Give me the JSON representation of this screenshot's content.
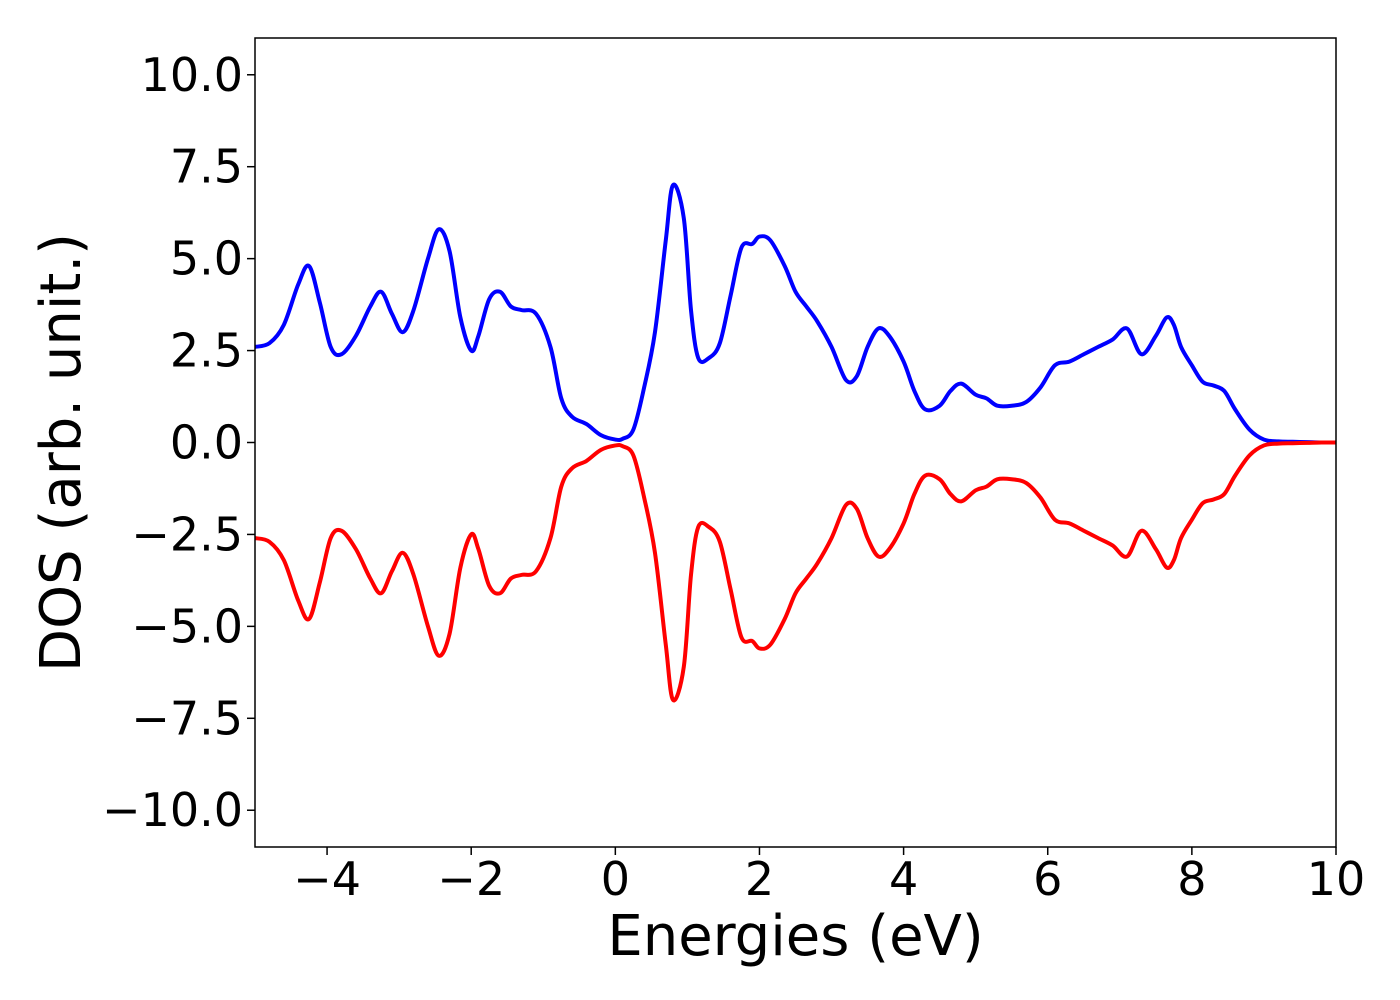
{
  "chart_data": {
    "type": "line",
    "title": "",
    "xlabel": "Energies (eV)",
    "ylabel": "DOS (arb. unit.)",
    "xlim": [
      -5,
      10
    ],
    "ylim": [
      -11,
      11
    ],
    "xticks": [
      -4,
      -2,
      0,
      2,
      4,
      6,
      8,
      10
    ],
    "yticks": [
      -10.0,
      -7.5,
      -5.0,
      -2.5,
      0.0,
      2.5,
      5.0,
      7.5,
      10.0
    ],
    "xtick_labels": [
      "−4",
      "−2",
      "0",
      "2",
      "4",
      "6",
      "8",
      "10"
    ],
    "ytick_labels": [
      "−10.0",
      "−7.5",
      "−5.0",
      "−2.5",
      "0.0",
      "2.5",
      "5.0",
      "7.5",
      "10.0"
    ],
    "grid": false,
    "legend": "none",
    "series": [
      {
        "color": "#0000ff",
        "x": [
          -5.0,
          -4.8,
          -4.6,
          -4.4,
          -4.25,
          -4.1,
          -3.95,
          -3.8,
          -3.6,
          -3.4,
          -3.25,
          -3.1,
          -2.95,
          -2.8,
          -2.6,
          -2.45,
          -2.3,
          -2.15,
          -2.0,
          -1.9,
          -1.75,
          -1.6,
          -1.45,
          -1.3,
          -1.1,
          -0.9,
          -0.75,
          -0.6,
          -0.4,
          -0.2,
          0.0,
          0.1,
          0.25,
          0.4,
          0.55,
          0.7,
          0.8,
          0.95,
          1.05,
          1.15,
          1.3,
          1.45,
          1.6,
          1.75,
          1.9,
          2.0,
          2.15,
          2.35,
          2.5,
          2.65,
          2.8,
          3.0,
          3.2,
          3.35,
          3.5,
          3.65,
          3.8,
          4.0,
          4.15,
          4.3,
          4.5,
          4.65,
          4.8,
          5.0,
          5.15,
          5.3,
          5.5,
          5.7,
          5.9,
          6.1,
          6.3,
          6.5,
          6.7,
          6.9,
          7.1,
          7.3,
          7.5,
          7.65,
          7.75,
          7.85,
          8.0,
          8.15,
          8.3,
          8.45,
          8.6,
          8.8,
          9.0,
          9.2,
          9.4,
          9.6,
          9.8,
          10.0
        ],
        "values": [
          2.6,
          2.7,
          3.2,
          4.3,
          4.8,
          3.8,
          2.6,
          2.4,
          2.9,
          3.7,
          4.1,
          3.5,
          3.0,
          3.6,
          5.0,
          5.8,
          5.2,
          3.4,
          2.5,
          2.9,
          3.9,
          4.1,
          3.7,
          3.6,
          3.5,
          2.6,
          1.2,
          0.7,
          0.5,
          0.2,
          0.08,
          0.1,
          0.35,
          1.5,
          3.0,
          5.5,
          7.0,
          6.1,
          3.6,
          2.3,
          2.3,
          2.7,
          4.0,
          5.3,
          5.4,
          5.6,
          5.5,
          4.8,
          4.1,
          3.7,
          3.3,
          2.6,
          1.7,
          1.8,
          2.6,
          3.1,
          2.9,
          2.2,
          1.4,
          0.9,
          1.0,
          1.4,
          1.6,
          1.3,
          1.2,
          1.0,
          1.0,
          1.1,
          1.5,
          2.1,
          2.2,
          2.4,
          2.6,
          2.8,
          3.1,
          2.4,
          2.9,
          3.4,
          3.2,
          2.6,
          2.1,
          1.65,
          1.55,
          1.4,
          0.9,
          0.35,
          0.08,
          0.03,
          0.02,
          0.01,
          0.0,
          0.0
        ]
      },
      {
        "color": "#ff0000",
        "x": [
          -5.0,
          -4.8,
          -4.6,
          -4.4,
          -4.25,
          -4.1,
          -3.95,
          -3.8,
          -3.6,
          -3.4,
          -3.25,
          -3.1,
          -2.95,
          -2.8,
          -2.6,
          -2.45,
          -2.3,
          -2.15,
          -2.0,
          -1.9,
          -1.75,
          -1.6,
          -1.45,
          -1.3,
          -1.1,
          -0.9,
          -0.75,
          -0.6,
          -0.4,
          -0.2,
          0.0,
          0.1,
          0.25,
          0.4,
          0.55,
          0.7,
          0.8,
          0.95,
          1.05,
          1.15,
          1.3,
          1.45,
          1.6,
          1.75,
          1.9,
          2.0,
          2.15,
          2.35,
          2.5,
          2.65,
          2.8,
          3.0,
          3.2,
          3.35,
          3.5,
          3.65,
          3.8,
          4.0,
          4.15,
          4.3,
          4.5,
          4.65,
          4.8,
          5.0,
          5.15,
          5.3,
          5.5,
          5.7,
          5.9,
          6.1,
          6.3,
          6.5,
          6.7,
          6.9,
          7.1,
          7.3,
          7.5,
          7.65,
          7.75,
          7.85,
          8.0,
          8.15,
          8.3,
          8.45,
          8.6,
          8.8,
          9.0,
          9.2,
          9.4,
          9.6,
          9.8,
          10.0
        ],
        "values": [
          -2.6,
          -2.7,
          -3.2,
          -4.3,
          -4.8,
          -3.8,
          -2.6,
          -2.4,
          -2.9,
          -3.7,
          -4.1,
          -3.5,
          -3.0,
          -3.6,
          -5.0,
          -5.8,
          -5.2,
          -3.4,
          -2.5,
          -2.9,
          -3.9,
          -4.1,
          -3.7,
          -3.6,
          -3.5,
          -2.6,
          -1.2,
          -0.7,
          -0.5,
          -0.2,
          -0.08,
          -0.1,
          -0.35,
          -1.5,
          -3.0,
          -5.5,
          -7.0,
          -6.1,
          -3.6,
          -2.3,
          -2.3,
          -2.7,
          -4.0,
          -5.3,
          -5.4,
          -5.6,
          -5.5,
          -4.8,
          -4.1,
          -3.7,
          -3.3,
          -2.6,
          -1.7,
          -1.8,
          -2.6,
          -3.1,
          -2.9,
          -2.2,
          -1.4,
          -0.9,
          -1.0,
          -1.4,
          -1.6,
          -1.3,
          -1.2,
          -1.0,
          -1.0,
          -1.1,
          -1.5,
          -2.1,
          -2.2,
          -2.4,
          -2.6,
          -2.8,
          -3.1,
          -2.4,
          -2.9,
          -3.4,
          -3.2,
          -2.6,
          -2.1,
          -1.65,
          -1.55,
          -1.4,
          -0.9,
          -0.35,
          -0.08,
          -0.03,
          -0.02,
          -0.01,
          0.0,
          0.0
        ]
      }
    ]
  }
}
